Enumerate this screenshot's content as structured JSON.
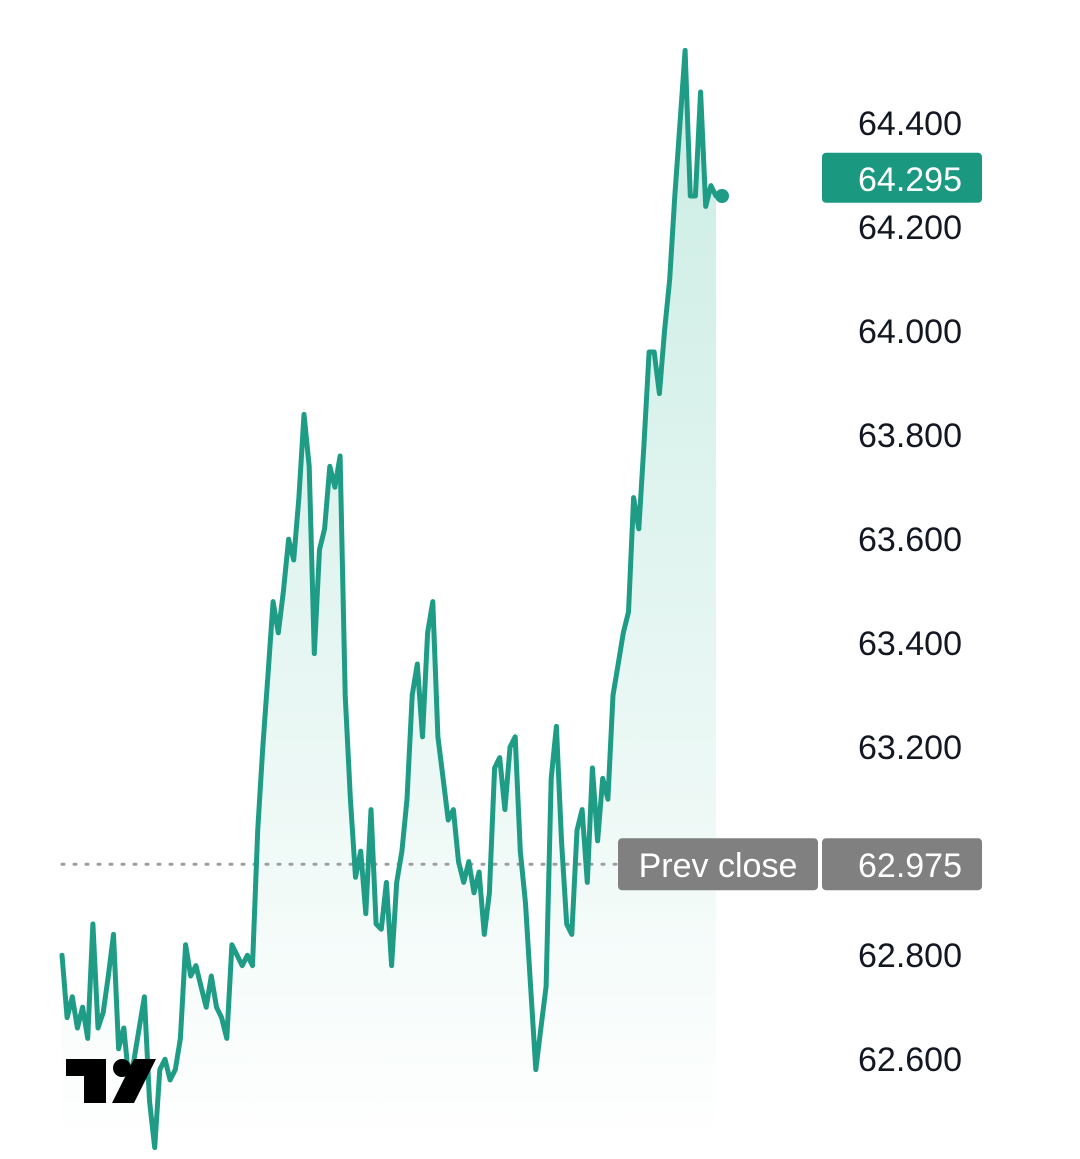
{
  "chart_data": {
    "type": "area",
    "ylim": [
      62.46,
      64.56
    ],
    "y_ticks": [
      "62.600",
      "62.800",
      "63.000",
      "63.200",
      "63.400",
      "63.600",
      "63.800",
      "64.000",
      "64.200",
      "64.400"
    ],
    "y_tick_labels": [
      "62.600",
      "62.800",
      "63.200",
      "63.400",
      "63.600",
      "63.800",
      "64.000",
      "64.200",
      "64.400"
    ],
    "grid": false,
    "legend": "none",
    "series": [
      {
        "values": [
          62.8,
          62.68,
          62.72,
          62.66,
          62.7,
          62.64,
          62.86,
          62.66,
          62.69,
          62.76,
          62.84,
          62.62,
          62.66,
          62.56,
          62.6,
          62.66,
          62.72,
          62.52,
          62.43,
          62.58,
          62.6,
          62.56,
          62.58,
          62.64,
          62.82,
          62.76,
          62.78,
          62.74,
          62.7,
          62.76,
          62.7,
          62.68,
          62.64,
          62.82,
          62.8,
          62.78,
          62.8,
          62.78,
          63.04,
          63.2,
          63.34,
          63.48,
          63.42,
          63.5,
          63.6,
          63.56,
          63.68,
          63.84,
          63.74,
          63.38,
          63.58,
          63.62,
          63.74,
          63.7,
          63.76,
          63.3,
          63.1,
          62.95,
          63.0,
          62.88,
          63.08,
          62.86,
          62.85,
          62.94,
          62.78,
          62.94,
          63.0,
          63.1,
          63.3,
          63.36,
          63.22,
          63.42,
          63.48,
          63.22,
          63.14,
          63.06,
          63.08,
          62.98,
          62.94,
          62.98,
          62.92,
          62.96,
          62.84,
          62.92,
          63.16,
          63.18,
          63.08,
          63.2,
          63.22,
          63.0,
          62.9,
          62.74,
          62.58,
          62.66,
          62.74,
          63.14,
          63.24,
          63.02,
          62.86,
          62.84,
          63.04,
          63.08,
          62.94,
          63.16,
          63.02,
          63.14,
          63.1,
          63.3,
          63.36,
          63.42,
          63.46,
          63.68,
          63.62,
          63.78,
          63.96,
          63.96,
          63.88,
          64.0,
          64.1,
          64.26,
          64.4,
          64.54,
          64.26,
          64.26,
          64.46,
          64.24,
          64.28,
          64.26
        ]
      }
    ],
    "last_value_label": "64.295",
    "prev_close_label": "Prev close",
    "prev_close_value_label": "62.975",
    "prev_close_value": 62.975,
    "last_value": 64.295
  },
  "colors": {
    "line": "#1f9c85",
    "area_top": "#c7ebe2",
    "area_bottom": "#ffffff",
    "badge_accent": "#1a9880",
    "badge_gray": "#808080",
    "text": "#131722",
    "dotted_line": "#9e9e9e"
  },
  "logo": {
    "icon": "tradingview-logo"
  }
}
